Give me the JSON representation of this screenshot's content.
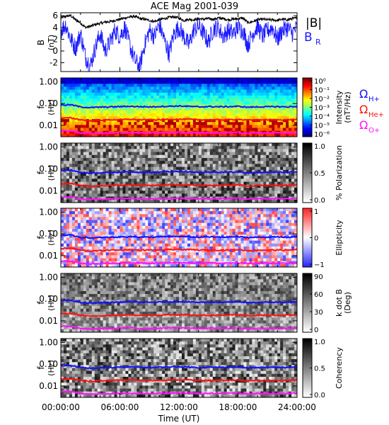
{
  "title": "ACE Mag 2001-039",
  "x_axis": {
    "label": "Time (UT)",
    "ticks": [
      "00:00:00",
      "06:00:00",
      "12:00:00",
      "18:00:00",
      "24:00:00"
    ],
    "range_hours": [
      0,
      24
    ]
  },
  "colors": {
    "B_total": "#000000",
    "B_R": "#1a1aff",
    "Omega_H": "#1010ff",
    "Omega_He": "#ff1010",
    "Omega_O": "#ff10ff"
  },
  "legend_top": {
    "B_total": "|B|",
    "B_R": "B",
    "B_R_sub": "R"
  },
  "legend_gyro": [
    {
      "symbol": "Ω",
      "sub": "H+",
      "color": "#1010ff"
    },
    {
      "symbol": "Ω",
      "sub": "He+",
      "color": "#ff1010"
    },
    {
      "symbol": "Ω",
      "sub": "O+",
      "color": "#ff10ff"
    }
  ],
  "panels": [
    {
      "id": "b",
      "ylabel": "B",
      "ylabel2": "(nT)",
      "yticks": [
        "6",
        "4",
        "2",
        "0",
        "-2"
      ]
    },
    {
      "id": "intensity",
      "ylabel": "f",
      "ylabel2": "(Hz)",
      "yticks": [
        "1.00",
        "0.10",
        "0.01"
      ],
      "colorbar_label": "Intensity",
      "colorbar_label2": "(nT²/Hz)",
      "colorbar_ticks": [
        "10⁰",
        "10⁻¹",
        "10⁻²",
        "10⁻³",
        "10⁻⁴",
        "10⁻⁵",
        "10⁻⁶"
      ]
    },
    {
      "id": "polarization",
      "ylabel": "f",
      "ylabel2": "(Hz)",
      "yticks": [
        "1.00",
        "0.10",
        "0.01"
      ],
      "colorbar_label": "% Polarization",
      "colorbar_ticks": [
        "1.0",
        "0.5",
        "0.0"
      ]
    },
    {
      "id": "ellipticity",
      "ylabel": "f",
      "ylabel2": "(Hz)",
      "yticks": [
        "1.00",
        "0.10",
        "0.01"
      ],
      "colorbar_label": "Ellipticity",
      "colorbar_ticks": [
        "1",
        "0",
        "−1"
      ]
    },
    {
      "id": "kdotb",
      "ylabel": "f",
      "ylabel2": "(Hz)",
      "yticks": [
        "1.00",
        "0.10",
        "0.01"
      ],
      "colorbar_label": "k dot B",
      "colorbar_label2": "(Deg)",
      "colorbar_ticks": [
        "90",
        "60",
        "30",
        "0"
      ]
    },
    {
      "id": "coherency",
      "ylabel": "f",
      "ylabel2": "(Hz)",
      "yticks": [
        "1.00",
        "0.10",
        "0.01"
      ],
      "colorbar_label": "Coherency",
      "colorbar_ticks": [
        "1.0",
        "0.5",
        "0.0"
      ]
    }
  ],
  "chart_data": {
    "type": "line",
    "title": "ACE Mag 2001-039",
    "xlabel": "Time (UT)",
    "xlim_hours": [
      0,
      24
    ],
    "b_panel": {
      "ylabel": "B (nT)",
      "ylim": [
        -3.5,
        6.5
      ],
      "hours": [
        0,
        0.5,
        1,
        1.5,
        2,
        2.5,
        3,
        3.5,
        4,
        4.5,
        5,
        5.5,
        6,
        6.5,
        7,
        7.5,
        8,
        8.5,
        9,
        9.5,
        10,
        10.5,
        11,
        11.5,
        12,
        12.5,
        13,
        13.5,
        14,
        14.5,
        15,
        15.5,
        16,
        16.5,
        17,
        17.5,
        18,
        18.5,
        19,
        19.5,
        20,
        20.5,
        21,
        21.5,
        22,
        22.5,
        23,
        23.5,
        24
      ],
      "series": [
        {
          "name": "|B|",
          "values": [
            5.6,
            5.9,
            6.0,
            5.3,
            4.8,
            4.0,
            4.2,
            4.5,
            4.7,
            4.9,
            5.0,
            5.2,
            5.4,
            5.6,
            5.8,
            5.9,
            5.5,
            5.4,
            5.2,
            5.0,
            5.3,
            5.5,
            5.7,
            5.8,
            5.6,
            5.2,
            5.4,
            5.3,
            5.5,
            5.4,
            5.5,
            5.4,
            5.6,
            5.5,
            5.3,
            5.4,
            5.5,
            5.6,
            4.8,
            5.0,
            5.3,
            5.4,
            5.3,
            5.3,
            5.2,
            5.4,
            5.3,
            5.5,
            5.6
          ]
        },
        {
          "name": "B_R",
          "values": [
            3.5,
            4.5,
            2.0,
            0.5,
            3.0,
            -1.0,
            -2.5,
            0.5,
            3.0,
            0.0,
            1.5,
            3.5,
            2.5,
            4.0,
            1.0,
            -1.5,
            -2.8,
            1.0,
            3.5,
            2.5,
            4.5,
            2.0,
            -0.5,
            3.0,
            4.0,
            2.5,
            1.0,
            3.5,
            4.2,
            3.0,
            1.5,
            3.8,
            4.0,
            2.5,
            3.5,
            3.0,
            4.0,
            3.5,
            1.0,
            3.0,
            4.2,
            2.5,
            3.5,
            4.0,
            2.0,
            3.5,
            4.0,
            3.0,
            4.0
          ]
        }
      ]
    },
    "spectral_panels": {
      "ylabel": "f (Hz)",
      "yscale": "log",
      "ylim": [
        0.003,
        1.5
      ],
      "hours": [
        0,
        1,
        2,
        3,
        4,
        5,
        6,
        7,
        8,
        9,
        10,
        11,
        12,
        13,
        14,
        15,
        16,
        17,
        18,
        19,
        20,
        21,
        22,
        23,
        24
      ],
      "gyrofrequency_series": [
        {
          "name": "ΩH+",
          "values": [
            0.085,
            0.088,
            0.07,
            0.065,
            0.068,
            0.07,
            0.072,
            0.075,
            0.072,
            0.07,
            0.073,
            0.075,
            0.077,
            0.074,
            0.07,
            0.073,
            0.071,
            0.072,
            0.074,
            0.068,
            0.07,
            0.071,
            0.072,
            0.07,
            0.074
          ]
        },
        {
          "name": "ΩHe+",
          "values": [
            0.021,
            0.022,
            0.018,
            0.016,
            0.017,
            0.018,
            0.018,
            0.019,
            0.018,
            0.018,
            0.018,
            0.019,
            0.019,
            0.019,
            0.018,
            0.018,
            0.018,
            0.018,
            0.019,
            0.017,
            0.018,
            0.018,
            0.018,
            0.018,
            0.019
          ]
        },
        {
          "name": "ΩO+",
          "values": [
            0.0055,
            0.0056,
            0.0045,
            0.0042,
            0.0043,
            0.0045,
            0.0046,
            0.0047,
            0.0046,
            0.0045,
            0.0046,
            0.0047,
            0.0048,
            0.0047,
            0.0045,
            0.0046,
            0.0045,
            0.0046,
            0.0047,
            0.0043,
            0.0045,
            0.0045,
            0.0046,
            0.0045,
            0.0047
          ]
        }
      ]
    }
  }
}
